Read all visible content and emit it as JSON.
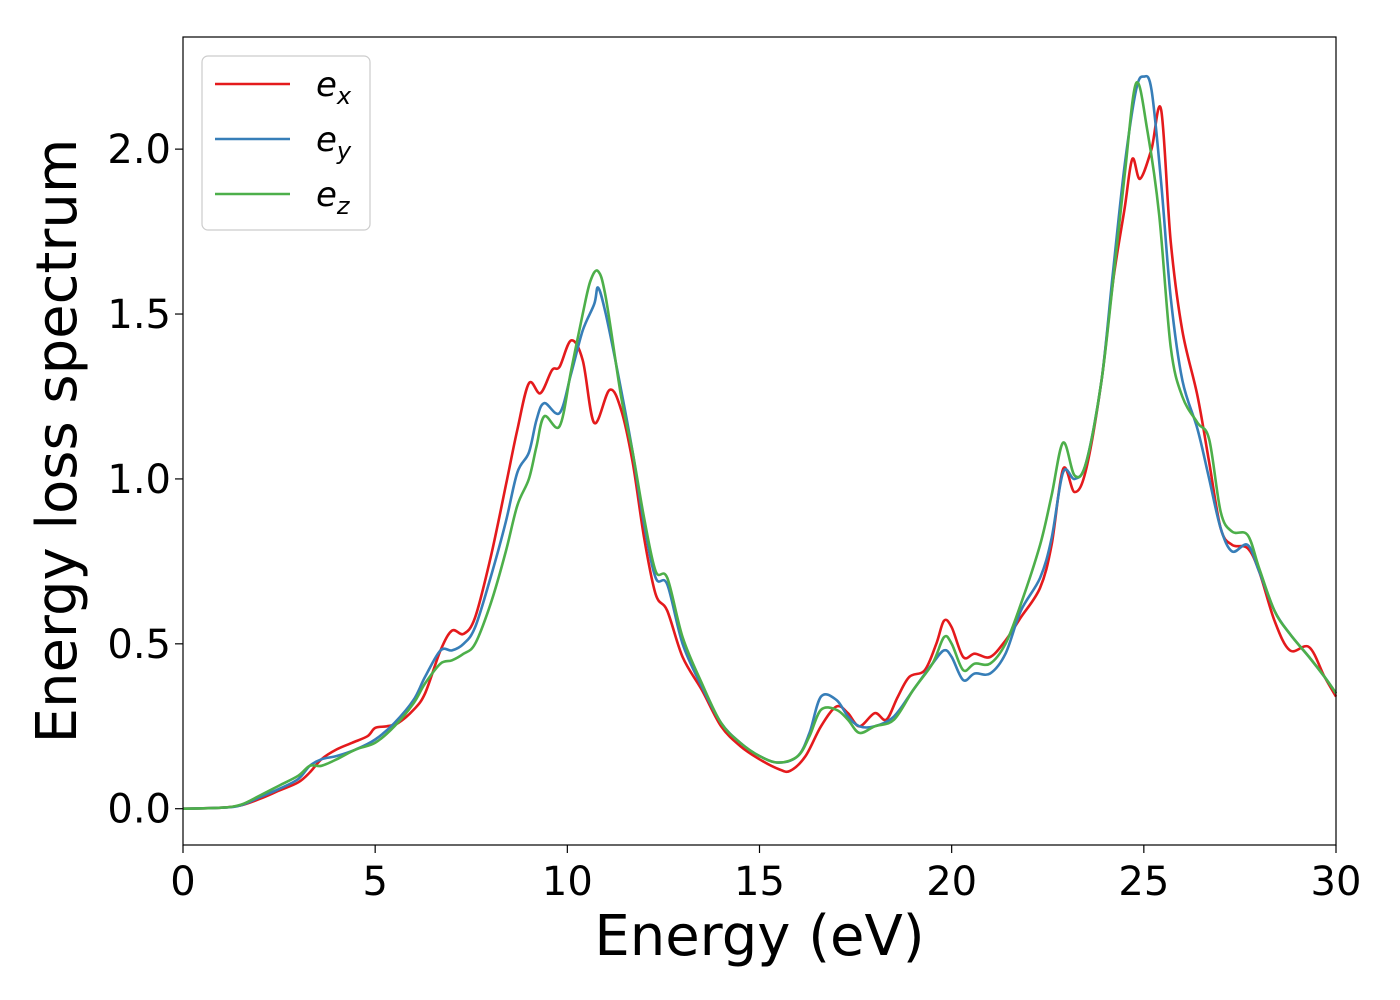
{
  "chart_data": {
    "type": "line",
    "xlabel": "Energy (eV)",
    "ylabel": "Energy loss spectrum",
    "xlim": [
      0,
      30
    ],
    "ylim": [
      -0.11,
      2.34
    ],
    "xticks": [
      0,
      5,
      10,
      15,
      20,
      25,
      30
    ],
    "yticks": [
      0.0,
      0.5,
      1.0,
      1.5,
      2.0
    ],
    "xtick_labels": [
      "0",
      "5",
      "10",
      "15",
      "20",
      "25",
      "30"
    ],
    "ytick_labels": [
      "0.0",
      "0.5",
      "1.0",
      "1.5",
      "2.0"
    ],
    "grid": false,
    "legend_position": "top-left",
    "series": [
      {
        "name": "e_x",
        "label_base": "e",
        "label_sub": "x",
        "color": "#e41a1c",
        "points": [
          [
            0,
            0
          ],
          [
            1,
            0.003
          ],
          [
            1.5,
            0.01
          ],
          [
            2,
            0.03
          ],
          [
            2.5,
            0.055
          ],
          [
            3,
            0.08
          ],
          [
            3.3,
            0.11
          ],
          [
            3.6,
            0.15
          ],
          [
            4,
            0.18
          ],
          [
            4.4,
            0.2
          ],
          [
            4.8,
            0.22
          ],
          [
            5,
            0.245
          ],
          [
            5.3,
            0.25
          ],
          [
            5.6,
            0.26
          ],
          [
            6,
            0.3
          ],
          [
            6.3,
            0.35
          ],
          [
            6.7,
            0.48
          ],
          [
            7,
            0.54
          ],
          [
            7.3,
            0.53
          ],
          [
            7.6,
            0.58
          ],
          [
            8,
            0.76
          ],
          [
            8.4,
            0.98
          ],
          [
            8.7,
            1.15
          ],
          [
            9,
            1.29
          ],
          [
            9.3,
            1.26
          ],
          [
            9.6,
            1.33
          ],
          [
            9.8,
            1.34
          ],
          [
            10.1,
            1.42
          ],
          [
            10.4,
            1.36
          ],
          [
            10.7,
            1.17
          ],
          [
            11.1,
            1.27
          ],
          [
            11.4,
            1.21
          ],
          [
            11.7,
            1.05
          ],
          [
            12,
            0.82
          ],
          [
            12.3,
            0.65
          ],
          [
            12.6,
            0.6
          ],
          [
            13,
            0.46
          ],
          [
            13.5,
            0.36
          ],
          [
            14,
            0.25
          ],
          [
            14.5,
            0.19
          ],
          [
            15,
            0.15
          ],
          [
            15.5,
            0.12
          ],
          [
            15.8,
            0.115
          ],
          [
            16.2,
            0.16
          ],
          [
            16.6,
            0.25
          ],
          [
            17,
            0.31
          ],
          [
            17.3,
            0.29
          ],
          [
            17.6,
            0.25
          ],
          [
            18,
            0.29
          ],
          [
            18.3,
            0.27
          ],
          [
            18.6,
            0.34
          ],
          [
            18.9,
            0.4
          ],
          [
            19.3,
            0.42
          ],
          [
            19.6,
            0.5
          ],
          [
            19.8,
            0.57
          ],
          [
            20,
            0.55
          ],
          [
            20.3,
            0.46
          ],
          [
            20.6,
            0.47
          ],
          [
            21,
            0.46
          ],
          [
            21.4,
            0.51
          ],
          [
            21.8,
            0.58
          ],
          [
            22.3,
            0.67
          ],
          [
            22.6,
            0.8
          ],
          [
            22.9,
            1.03
          ],
          [
            23.2,
            0.96
          ],
          [
            23.5,
            1.03
          ],
          [
            23.9,
            1.3
          ],
          [
            24.2,
            1.6
          ],
          [
            24.5,
            1.82
          ],
          [
            24.7,
            1.97
          ],
          [
            24.9,
            1.91
          ],
          [
            25.2,
            2.0
          ],
          [
            25.45,
            2.12
          ],
          [
            25.7,
            1.72
          ],
          [
            26,
            1.45
          ],
          [
            26.4,
            1.25
          ],
          [
            26.7,
            1.05
          ],
          [
            27,
            0.85
          ],
          [
            27.3,
            0.8
          ],
          [
            27.7,
            0.79
          ],
          [
            28,
            0.72
          ],
          [
            28.4,
            0.57
          ],
          [
            28.8,
            0.48
          ],
          [
            29.3,
            0.49
          ],
          [
            29.7,
            0.4
          ],
          [
            30,
            0.34
          ]
        ]
      },
      {
        "name": "e_y",
        "label_base": "e",
        "label_sub": "y",
        "color": "#377eb8",
        "points": [
          [
            0,
            0
          ],
          [
            1,
            0.003
          ],
          [
            1.5,
            0.01
          ],
          [
            2,
            0.035
          ],
          [
            2.5,
            0.06
          ],
          [
            3,
            0.09
          ],
          [
            3.3,
            0.13
          ],
          [
            3.6,
            0.15
          ],
          [
            4,
            0.16
          ],
          [
            4.5,
            0.18
          ],
          [
            5,
            0.21
          ],
          [
            5.5,
            0.26
          ],
          [
            6,
            0.33
          ],
          [
            6.3,
            0.4
          ],
          [
            6.7,
            0.48
          ],
          [
            7,
            0.48
          ],
          [
            7.3,
            0.5
          ],
          [
            7.6,
            0.55
          ],
          [
            8,
            0.7
          ],
          [
            8.4,
            0.87
          ],
          [
            8.7,
            1.02
          ],
          [
            9,
            1.08
          ],
          [
            9.2,
            1.18
          ],
          [
            9.4,
            1.23
          ],
          [
            9.8,
            1.2
          ],
          [
            10.1,
            1.32
          ],
          [
            10.4,
            1.45
          ],
          [
            10.7,
            1.53
          ],
          [
            10.8,
            1.58
          ],
          [
            11,
            1.5
          ],
          [
            11.4,
            1.27
          ],
          [
            11.7,
            1.08
          ],
          [
            12,
            0.86
          ],
          [
            12.3,
            0.7
          ],
          [
            12.6,
            0.68
          ],
          [
            13,
            0.5
          ],
          [
            13.5,
            0.37
          ],
          [
            14,
            0.26
          ],
          [
            14.5,
            0.2
          ],
          [
            15,
            0.16
          ],
          [
            15.5,
            0.14
          ],
          [
            16,
            0.16
          ],
          [
            16.3,
            0.23
          ],
          [
            16.6,
            0.34
          ],
          [
            17,
            0.33
          ],
          [
            17.3,
            0.28
          ],
          [
            17.6,
            0.25
          ],
          [
            18,
            0.25
          ],
          [
            18.5,
            0.28
          ],
          [
            19,
            0.36
          ],
          [
            19.5,
            0.44
          ],
          [
            19.8,
            0.48
          ],
          [
            20,
            0.46
          ],
          [
            20.3,
            0.39
          ],
          [
            20.6,
            0.41
          ],
          [
            21,
            0.41
          ],
          [
            21.4,
            0.47
          ],
          [
            21.8,
            0.6
          ],
          [
            22.3,
            0.7
          ],
          [
            22.6,
            0.82
          ],
          [
            22.9,
            1.02
          ],
          [
            23.2,
            1.0
          ],
          [
            23.5,
            1.05
          ],
          [
            23.9,
            1.3
          ],
          [
            24.2,
            1.63
          ],
          [
            24.5,
            1.95
          ],
          [
            24.8,
            2.18
          ],
          [
            25,
            2.22
          ],
          [
            25.2,
            2.18
          ],
          [
            25.45,
            1.9
          ],
          [
            25.7,
            1.55
          ],
          [
            26,
            1.3
          ],
          [
            26.4,
            1.15
          ],
          [
            26.7,
            1.0
          ],
          [
            27,
            0.85
          ],
          [
            27.3,
            0.78
          ],
          [
            27.7,
            0.8
          ],
          [
            28,
            0.72
          ],
          [
            28.4,
            0.6
          ],
          [
            28.8,
            0.53
          ],
          [
            29.3,
            0.46
          ],
          [
            29.7,
            0.4
          ],
          [
            30,
            0.35
          ]
        ]
      },
      {
        "name": "e_z",
        "label_base": "e",
        "label_sub": "z",
        "color": "#4daf4a",
        "points": [
          [
            0,
            0
          ],
          [
            1,
            0.003
          ],
          [
            1.5,
            0.012
          ],
          [
            2,
            0.04
          ],
          [
            2.5,
            0.07
          ],
          [
            3,
            0.1
          ],
          [
            3.3,
            0.13
          ],
          [
            3.6,
            0.13
          ],
          [
            4,
            0.15
          ],
          [
            4.5,
            0.18
          ],
          [
            5,
            0.2
          ],
          [
            5.5,
            0.25
          ],
          [
            6,
            0.32
          ],
          [
            6.3,
            0.38
          ],
          [
            6.7,
            0.44
          ],
          [
            7,
            0.45
          ],
          [
            7.3,
            0.47
          ],
          [
            7.6,
            0.5
          ],
          [
            8,
            0.62
          ],
          [
            8.4,
            0.78
          ],
          [
            8.7,
            0.92
          ],
          [
            9,
            1.0
          ],
          [
            9.2,
            1.1
          ],
          [
            9.4,
            1.19
          ],
          [
            9.8,
            1.16
          ],
          [
            10.1,
            1.33
          ],
          [
            10.4,
            1.5
          ],
          [
            10.6,
            1.6
          ],
          [
            10.8,
            1.63
          ],
          [
            11,
            1.55
          ],
          [
            11.4,
            1.25
          ],
          [
            11.7,
            1.08
          ],
          [
            12,
            0.88
          ],
          [
            12.3,
            0.72
          ],
          [
            12.6,
            0.7
          ],
          [
            13,
            0.52
          ],
          [
            13.5,
            0.38
          ],
          [
            14,
            0.26
          ],
          [
            14.5,
            0.2
          ],
          [
            15,
            0.16
          ],
          [
            15.5,
            0.14
          ],
          [
            16,
            0.16
          ],
          [
            16.3,
            0.22
          ],
          [
            16.6,
            0.3
          ],
          [
            17,
            0.3
          ],
          [
            17.3,
            0.27
          ],
          [
            17.6,
            0.23
          ],
          [
            18,
            0.25
          ],
          [
            18.5,
            0.27
          ],
          [
            19,
            0.36
          ],
          [
            19.5,
            0.44
          ],
          [
            19.8,
            0.52
          ],
          [
            20,
            0.5
          ],
          [
            20.3,
            0.42
          ],
          [
            20.6,
            0.44
          ],
          [
            21,
            0.44
          ],
          [
            21.4,
            0.5
          ],
          [
            21.8,
            0.62
          ],
          [
            22.3,
            0.8
          ],
          [
            22.6,
            0.95
          ],
          [
            22.9,
            1.11
          ],
          [
            23.2,
            1.01
          ],
          [
            23.5,
            1.05
          ],
          [
            23.9,
            1.3
          ],
          [
            24.2,
            1.6
          ],
          [
            24.5,
            1.92
          ],
          [
            24.8,
            2.2
          ],
          [
            25.1,
            2.05
          ],
          [
            25.4,
            1.8
          ],
          [
            25.7,
            1.4
          ],
          [
            26,
            1.25
          ],
          [
            26.4,
            1.17
          ],
          [
            26.7,
            1.12
          ],
          [
            27,
            0.9
          ],
          [
            27.3,
            0.84
          ],
          [
            27.7,
            0.83
          ],
          [
            28,
            0.73
          ],
          [
            28.4,
            0.6
          ],
          [
            28.8,
            0.53
          ],
          [
            29.3,
            0.46
          ],
          [
            29.7,
            0.4
          ],
          [
            30,
            0.35
          ]
        ]
      }
    ]
  }
}
